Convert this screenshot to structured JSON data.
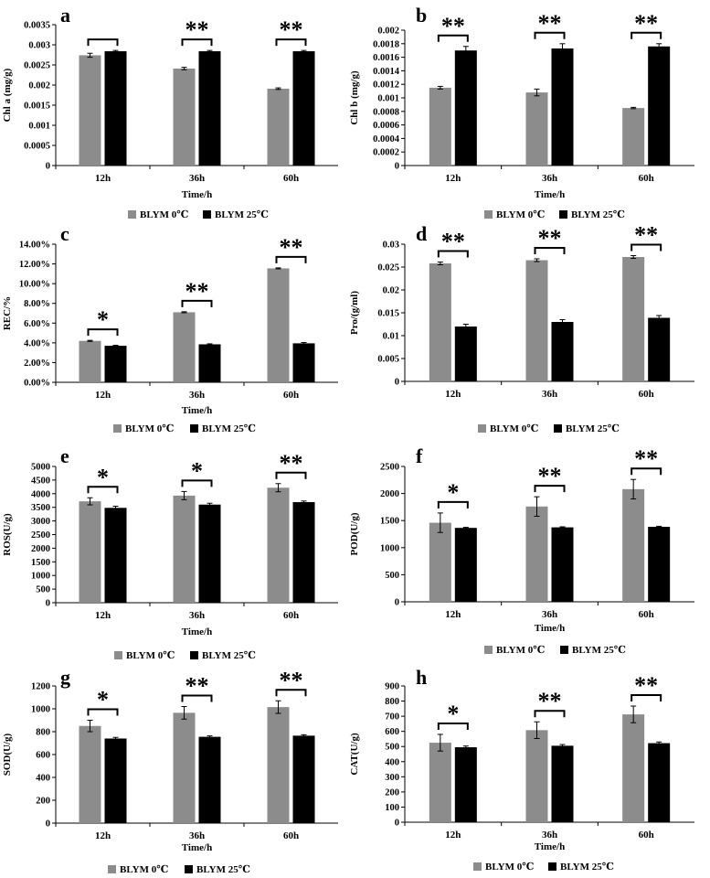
{
  "figure": {
    "colors": {
      "cold": "#8c8c8c",
      "warm": "#000000",
      "axis": "#000000"
    }
  },
  "chart_data": [
    {
      "type": "bar",
      "panel_label": "a",
      "categories": [
        "12h",
        "36h",
        "60h"
      ],
      "series": [
        {
          "name": "BLYM 0℃",
          "values": [
            0.00274,
            0.00241,
            0.00191
          ],
          "errors": [
            5e-05,
            3e-05,
            2e-05
          ]
        },
        {
          "name": "BLYM 25℃",
          "values": [
            0.00284,
            0.00284,
            0.00284
          ],
          "errors": [
            2e-05,
            2e-05,
            2e-05
          ]
        }
      ],
      "significance": [
        "",
        "**",
        "**"
      ],
      "xlabel": "Time/h",
      "ylabel": "Chl a (mg/g)",
      "ylim": [
        0,
        0.0035
      ],
      "yticks": [
        "0",
        "0.0005",
        "0.001",
        "0.0015",
        "0.002",
        "0.0025",
        "0.003",
        "0.0035"
      ],
      "legend": {
        "position": "bottom"
      }
    },
    {
      "type": "bar",
      "panel_label": "b",
      "categories": [
        "12h",
        "36h",
        "60h"
      ],
      "series": [
        {
          "name": "BLYM 0℃",
          "values": [
            0.00115,
            0.00108,
            0.00085
          ],
          "errors": [
            2e-05,
            5e-05,
            1e-05
          ]
        },
        {
          "name": "BLYM 25℃",
          "values": [
            0.0017,
            0.00173,
            0.00176
          ],
          "errors": [
            6e-05,
            7e-05,
            4e-05
          ]
        }
      ],
      "significance": [
        "**",
        "**",
        "**"
      ],
      "xlabel": "Time/h",
      "ylabel": "Chl b (mg/g)",
      "ylim": [
        0,
        0.002
      ],
      "yticks": [
        "0",
        "0.0002",
        "0.0004",
        "0.0006",
        "0.0008",
        "0.001",
        "0.0012",
        "0.0014",
        "0.0016",
        "0.0018",
        "0.002"
      ],
      "legend": {
        "position": "bottom"
      }
    },
    {
      "type": "bar",
      "panel_label": "c",
      "categories": [
        "12h",
        "36h",
        "60h"
      ],
      "series": [
        {
          "name": "BLYM 0℃",
          "values": [
            0.042,
            0.071,
            0.1155
          ],
          "errors": [
            0.0005,
            0.0005,
            0.0005
          ]
        },
        {
          "name": "BLYM 25℃",
          "values": [
            0.037,
            0.0385,
            0.0395
          ],
          "errors": [
            0.0005,
            0.0005,
            0.0008
          ]
        }
      ],
      "significance": [
        "*",
        "**",
        "**"
      ],
      "xlabel": "Time/h",
      "ylabel": "REC/%",
      "ylim": [
        0,
        0.14
      ],
      "yticks": [
        "0.00%",
        "2.00%",
        "4.00%",
        "6.00%",
        "8.00%",
        "10.00%",
        "12.00%",
        "14.00%"
      ],
      "legend": {
        "position": "bottom"
      }
    },
    {
      "type": "bar",
      "panel_label": "d",
      "categories": [
        "12h",
        "36h",
        "60h"
      ],
      "series": [
        {
          "name": "BLYM 0℃",
          "values": [
            0.0258,
            0.0265,
            0.0272
          ],
          "errors": [
            0.0003,
            0.0003,
            0.0003
          ]
        },
        {
          "name": "BLYM 25℃",
          "values": [
            0.012,
            0.013,
            0.0139
          ],
          "errors": [
            0.0005,
            0.0005,
            0.0005
          ]
        }
      ],
      "significance": [
        "**",
        "**",
        "**"
      ],
      "xlabel": "",
      "ylabel": "Pro/(g/ml)",
      "ylim": [
        0,
        0.03
      ],
      "yticks": [
        "0",
        "0.005",
        "0.01",
        "0.015",
        "0.02",
        "0.025",
        "0.03"
      ],
      "legend": {
        "position": "bottom"
      }
    },
    {
      "type": "bar",
      "panel_label": "e",
      "categories": [
        "12h",
        "36h",
        "60h"
      ],
      "series": [
        {
          "name": "BLYM 0℃",
          "values": [
            3720,
            3930,
            4220
          ],
          "errors": [
            130,
            150,
            150
          ]
        },
        {
          "name": "BLYM 25℃",
          "values": [
            3480,
            3600,
            3690
          ],
          "errors": [
            60,
            50,
            40
          ]
        }
      ],
      "significance": [
        "*",
        "*",
        "**"
      ],
      "xlabel": "Time/h",
      "ylabel": "ROS(U/g)",
      "ylim": [
        0,
        5000
      ],
      "yticks": [
        "0",
        "500",
        "1000",
        "1500",
        "2000",
        "2500",
        "3000",
        "3500",
        "4000",
        "4500",
        "5000"
      ],
      "legend": {
        "position": "bottom"
      }
    },
    {
      "type": "bar",
      "panel_label": "f",
      "categories": [
        "12h",
        "36h",
        "60h"
      ],
      "series": [
        {
          "name": "BLYM 0℃",
          "values": [
            1460,
            1760,
            2080
          ],
          "errors": [
            180,
            180,
            180
          ]
        },
        {
          "name": "BLYM 25℃",
          "values": [
            1365,
            1375,
            1385
          ],
          "errors": [
            10,
            10,
            10
          ]
        }
      ],
      "significance": [
        "*",
        "**",
        "**"
      ],
      "xlabel": "Time/h",
      "ylabel": "POD(U/g)",
      "ylim": [
        0,
        2500
      ],
      "yticks": [
        "0",
        "500",
        "1000",
        "1500",
        "2000",
        "2500"
      ],
      "legend": {
        "position": "bottom"
      }
    },
    {
      "type": "bar",
      "panel_label": "g",
      "categories": [
        "12h",
        "36h",
        "60h"
      ],
      "series": [
        {
          "name": "BLYM 0℃",
          "values": [
            850,
            965,
            1015
          ],
          "errors": [
            50,
            55,
            55
          ]
        },
        {
          "name": "BLYM 25℃",
          "values": [
            740,
            755,
            765
          ],
          "errors": [
            10,
            8,
            8
          ]
        }
      ],
      "significance": [
        "*",
        "**",
        "**"
      ],
      "xlabel": "Time/h",
      "ylabel": "SOD(U/g)",
      "ylim": [
        0,
        1200
      ],
      "yticks": [
        "0",
        "200",
        "400",
        "600",
        "800",
        "1000",
        "1200"
      ],
      "legend": {
        "position": "bottom"
      }
    },
    {
      "type": "bar",
      "panel_label": "h",
      "categories": [
        "12h",
        "36h",
        "60h"
      ],
      "series": [
        {
          "name": "BLYM 0℃",
          "values": [
            525,
            608,
            712
          ],
          "errors": [
            55,
            55,
            55
          ]
        },
        {
          "name": "BLYM 25℃",
          "values": [
            495,
            505,
            522
          ],
          "errors": [
            8,
            8,
            8
          ]
        }
      ],
      "significance": [
        "*",
        "**",
        "**"
      ],
      "xlabel": "Time/h",
      "ylabel": "CAT(U/g)",
      "ylim": [
        0,
        900
      ],
      "yticks": [
        "0",
        "100",
        "200",
        "300",
        "400",
        "500",
        "600",
        "700",
        "800",
        "900"
      ],
      "legend": {
        "position": "bottom"
      }
    }
  ]
}
